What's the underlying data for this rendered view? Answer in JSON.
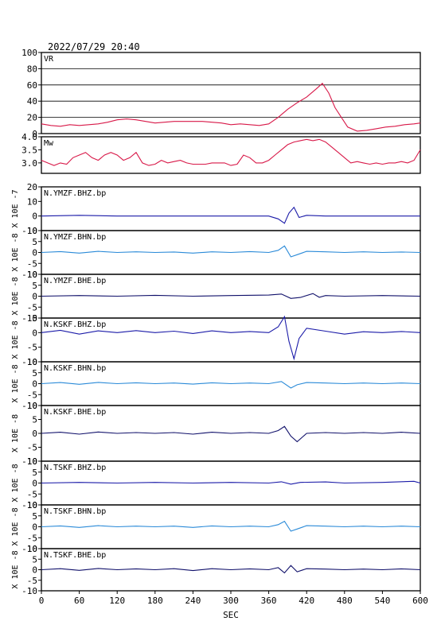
{
  "header": {
    "datetime": "2022/07/29 20:40"
  },
  "colors": {
    "vr": "#d81848",
    "mw": "#d81848",
    "bhz": "#1a1aa8",
    "bhn": "#2a8ad8",
    "bhe": "#10106a",
    "frame": "#000000"
  },
  "chart_data": {
    "type": "line",
    "xlabel": "SEC",
    "xlim": [
      0,
      600
    ],
    "xticks": [
      0,
      60,
      120,
      180,
      240,
      300,
      360,
      420,
      480,
      540,
      600
    ],
    "panels": [
      {
        "id": "vr",
        "label": "VR",
        "ylim": [
          0,
          100
        ],
        "yticks": [
          0,
          20,
          40,
          60,
          80,
          100
        ],
        "grid": true,
        "ylabel": "",
        "color_key": "vr",
        "series": {
          "x": [
            0,
            15,
            30,
            45,
            60,
            75,
            90,
            105,
            120,
            135,
            150,
            165,
            180,
            195,
            210,
            225,
            240,
            255,
            270,
            285,
            300,
            315,
            330,
            345,
            360,
            375,
            390,
            405,
            420,
            435,
            445,
            455,
            465,
            475,
            485,
            500,
            515,
            530,
            545,
            560,
            575,
            590,
            600
          ],
          "y": [
            12,
            10,
            9,
            11,
            10,
            11,
            12,
            14,
            17,
            18,
            17,
            15,
            13,
            14,
            15,
            15,
            15,
            15,
            14,
            13,
            11,
            12,
            11,
            10,
            12,
            20,
            30,
            38,
            45,
            55,
            62,
            50,
            32,
            20,
            8,
            3,
            4,
            6,
            8,
            9,
            11,
            12,
            13
          ]
        }
      },
      {
        "id": "mw",
        "label": "Mw",
        "ylim": [
          2.6,
          4.0
        ],
        "yticks": [
          3.0,
          3.5,
          4.0
        ],
        "yticklabels": [
          "3.0",
          "3.5",
          "4.0"
        ],
        "grid": false,
        "ylabel": "",
        "color_key": "mw",
        "series": {
          "x": [
            0,
            10,
            20,
            30,
            40,
            50,
            60,
            70,
            80,
            90,
            100,
            110,
            120,
            130,
            140,
            150,
            160,
            170,
            180,
            190,
            200,
            210,
            220,
            230,
            240,
            250,
            260,
            270,
            280,
            290,
            300,
            310,
            320,
            330,
            340,
            350,
            360,
            370,
            380,
            390,
            400,
            410,
            420,
            430,
            440,
            450,
            460,
            470,
            480,
            490,
            500,
            510,
            520,
            530,
            540,
            550,
            560,
            570,
            580,
            590,
            600
          ],
          "y": [
            3.1,
            3.0,
            2.9,
            3.0,
            2.95,
            3.2,
            3.3,
            3.4,
            3.2,
            3.1,
            3.3,
            3.4,
            3.3,
            3.1,
            3.2,
            3.4,
            3.0,
            2.9,
            2.95,
            3.1,
            3.0,
            3.05,
            3.1,
            3.0,
            2.95,
            2.95,
            2.95,
            3.0,
            3.0,
            3.0,
            2.9,
            2.95,
            3.3,
            3.2,
            3.0,
            3.0,
            3.1,
            3.3,
            3.5,
            3.7,
            3.8,
            3.85,
            3.9,
            3.85,
            3.9,
            3.8,
            3.6,
            3.4,
            3.2,
            3.0,
            3.05,
            3.0,
            2.95,
            3.0,
            2.95,
            3.0,
            3.0,
            3.05,
            3.0,
            3.1,
            3.5
          ]
        }
      },
      {
        "id": "ymzf-bhz",
        "label": "N.YMZF.BHZ.bp",
        "ylim": [
          -10,
          20
        ],
        "yticks": [
          -10,
          0,
          10,
          20
        ],
        "grid": false,
        "ylabel": "X 10E -7",
        "color_key": "bhz",
        "series": {
          "x": [
            0,
            60,
            120,
            180,
            240,
            300,
            330,
            360,
            375,
            385,
            392,
            400,
            408,
            420,
            450,
            480,
            540,
            600
          ],
          "y": [
            0,
            0.5,
            0,
            0,
            0,
            0,
            0,
            0,
            -2,
            -5,
            2,
            6,
            -1,
            0.5,
            0,
            0,
            0,
            0
          ]
        }
      },
      {
        "id": "ymzf-bhn",
        "label": "N.YMZF.BHN.bp",
        "ylim": [
          -10,
          10
        ],
        "yticks": [
          -10,
          -5,
          0,
          5,
          10
        ],
        "grid": false,
        "ylabel": "X 10E -8",
        "color_key": "bhn",
        "series": {
          "x": [
            0,
            30,
            60,
            90,
            120,
            150,
            180,
            210,
            240,
            270,
            300,
            330,
            360,
            375,
            385,
            395,
            405,
            420,
            450,
            480,
            510,
            540,
            570,
            600
          ],
          "y": [
            0,
            0.4,
            -0.3,
            0.5,
            0,
            0.3,
            0,
            0.2,
            -0.3,
            0.3,
            0,
            0.4,
            0,
            1,
            3,
            -2,
            -1,
            0.5,
            0.3,
            0,
            0.3,
            0,
            0.2,
            0
          ]
        }
      },
      {
        "id": "ymzf-bhe",
        "label": "N.YMZF.BHE.bp",
        "ylim": [
          -10,
          10
        ],
        "yticks": [
          -10,
          -5,
          0,
          5,
          10
        ],
        "grid": false,
        "ylabel": "X 10E -8",
        "color_key": "bhe",
        "series": {
          "x": [
            0,
            60,
            120,
            180,
            240,
            300,
            360,
            380,
            395,
            410,
            430,
            440,
            450,
            480,
            540,
            600
          ],
          "y": [
            0,
            0.3,
            0,
            0.4,
            0,
            0.3,
            0.5,
            1,
            -1,
            -0.6,
            1.2,
            -0.5,
            0.3,
            0,
            0.3,
            0
          ]
        }
      },
      {
        "id": "kskf-bhz",
        "label": "N.KSKF.BHZ.bp",
        "ylim": [
          -10,
          5
        ],
        "yticks": [
          -10,
          -5,
          0,
          5
        ],
        "grid": false,
        "ylabel": "X 10E -8",
        "color_key": "bhz",
        "series": {
          "x": [
            0,
            30,
            60,
            90,
            120,
            150,
            180,
            210,
            240,
            270,
            300,
            330,
            360,
            375,
            385,
            392,
            400,
            408,
            420,
            450,
            480,
            510,
            540,
            570,
            600
          ],
          "y": [
            0,
            0.8,
            -0.5,
            0.6,
            0,
            0.7,
            0,
            0.5,
            -0.3,
            0.6,
            0,
            0.4,
            0,
            2,
            5.5,
            -3,
            -9,
            -2,
            1.5,
            0.5,
            -0.5,
            0.3,
            0,
            0.4,
            0
          ]
        }
      },
      {
        "id": "kskf-bhn",
        "label": "N.KSKF.BHN.bp",
        "ylim": [
          -10,
          10
        ],
        "yticks": [
          -10,
          -5,
          0,
          5,
          10
        ],
        "grid": false,
        "ylabel": "X 10E -8",
        "color_key": "bhn",
        "series": {
          "x": [
            0,
            30,
            60,
            90,
            120,
            150,
            180,
            210,
            240,
            270,
            300,
            330,
            360,
            380,
            395,
            405,
            420,
            450,
            480,
            510,
            540,
            570,
            600
          ],
          "y": [
            0,
            0.5,
            -0.3,
            0.6,
            0,
            0.4,
            0,
            0.3,
            -0.2,
            0.4,
            0,
            0.3,
            0,
            1,
            -2,
            -0.5,
            0.5,
            0.3,
            0,
            0.3,
            0,
            0.3,
            0
          ]
        }
      },
      {
        "id": "kskf-bhe",
        "label": "N.KSKF.BHE.bp",
        "ylim": [
          -10,
          10
        ],
        "yticks": [
          -10,
          -5,
          0,
          5,
          10
        ],
        "grid": false,
        "ylabel": "X 10E -8",
        "color_key": "bhe",
        "series": {
          "x": [
            0,
            30,
            60,
            90,
            120,
            150,
            180,
            210,
            240,
            270,
            300,
            330,
            360,
            375,
            385,
            395,
            405,
            420,
            450,
            480,
            510,
            540,
            570,
            600
          ],
          "y": [
            0,
            0.4,
            -0.3,
            0.5,
            0,
            0.3,
            0,
            0.3,
            -0.3,
            0.4,
            0,
            0.3,
            0,
            1,
            2.5,
            -1,
            -3,
            0,
            0.3,
            0,
            0.3,
            0,
            0.4,
            0
          ]
        }
      },
      {
        "id": "tskf-bhz",
        "label": "N.TSKF.BHZ.bp",
        "ylim": [
          -10,
          10
        ],
        "yticks": [
          -10,
          -5,
          0,
          5,
          10
        ],
        "grid": false,
        "ylabel": "X 10E -8",
        "color_key": "bhz",
        "series": {
          "x": [
            0,
            60,
            120,
            180,
            240,
            300,
            360,
            380,
            395,
            410,
            450,
            480,
            540,
            590,
            600
          ],
          "y": [
            0,
            0.3,
            0,
            0.3,
            0,
            0.3,
            0,
            0.6,
            -0.5,
            0.3,
            0.5,
            0,
            0.3,
            0.8,
            0
          ]
        }
      },
      {
        "id": "tskf-bhn",
        "label": "N.TSKF.BHN.bp",
        "ylim": [
          -10,
          10
        ],
        "yticks": [
          -10,
          -5,
          0,
          5,
          10
        ],
        "grid": false,
        "ylabel": "X 10E -8",
        "color_key": "bhn",
        "series": {
          "x": [
            0,
            30,
            60,
            90,
            120,
            150,
            180,
            210,
            240,
            270,
            300,
            330,
            360,
            375,
            385,
            395,
            405,
            420,
            450,
            480,
            510,
            540,
            570,
            600
          ],
          "y": [
            0,
            0.4,
            -0.3,
            0.5,
            0,
            0.3,
            0,
            0.3,
            -0.3,
            0.4,
            0,
            0.3,
            0,
            1,
            2.5,
            -2,
            -1,
            0.5,
            0.3,
            0,
            0.3,
            0,
            0.3,
            0
          ]
        }
      },
      {
        "id": "tskf-bhe",
        "label": "N.TSKF.BHE.bp",
        "ylim": [
          -10,
          10
        ],
        "yticks": [
          -10,
          -5,
          0,
          5,
          10
        ],
        "grid": false,
        "ylabel": "X 10E -8",
        "color_key": "bhe",
        "series": {
          "x": [
            0,
            30,
            60,
            90,
            120,
            150,
            180,
            210,
            240,
            270,
            300,
            330,
            360,
            375,
            385,
            395,
            405,
            420,
            450,
            480,
            510,
            540,
            570,
            600
          ],
          "y": [
            0,
            0.5,
            -0.3,
            0.6,
            0,
            0.4,
            0,
            0.5,
            -0.4,
            0.5,
            0,
            0.4,
            0,
            1,
            -1.5,
            2,
            -1,
            0.5,
            0.3,
            0,
            0.3,
            0,
            0.4,
            0
          ]
        }
      }
    ]
  }
}
